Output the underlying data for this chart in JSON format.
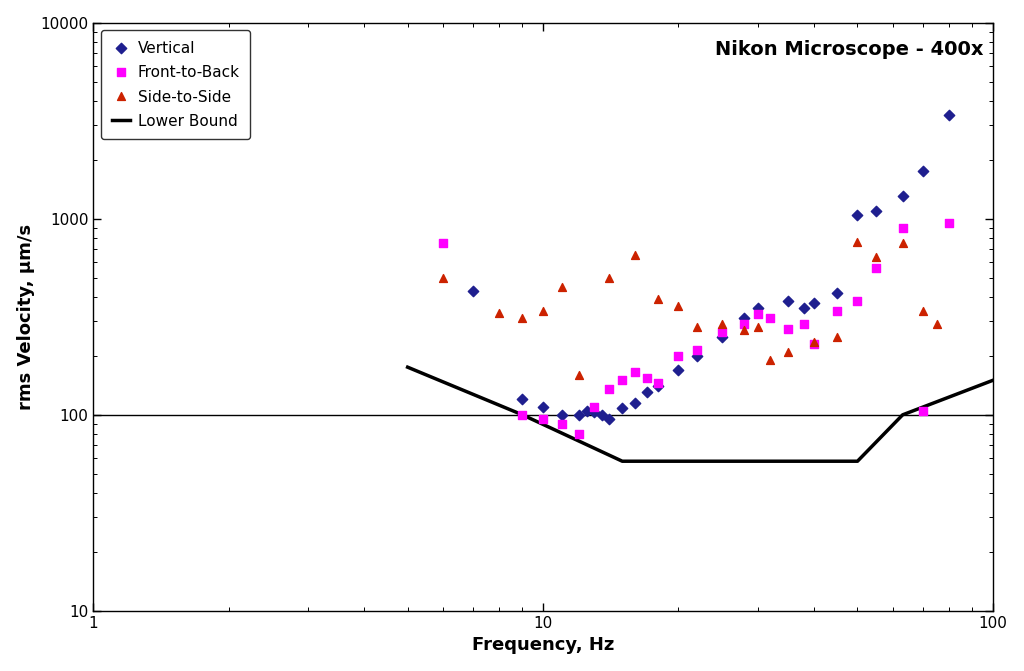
{
  "title": "Nikon Microscope - 400x",
  "xlabel": "Frequency, Hz",
  "ylabel": "rms Velocity, μm/s",
  "xlim": [
    1,
    100
  ],
  "ylim": [
    10,
    10000
  ],
  "background_color": "#ffffff",
  "hline_y": 100,
  "lower_bound_x": [
    5,
    9,
    15,
    50,
    63,
    100
  ],
  "lower_bound_y": [
    175,
    100,
    58,
    58,
    100,
    150
  ],
  "vertical_x": [
    7,
    9,
    10,
    11,
    12,
    12.5,
    13,
    13.5,
    14,
    15,
    16,
    17,
    18,
    20,
    22,
    25,
    28,
    30,
    35,
    38,
    40,
    45,
    50,
    55,
    63,
    70,
    80
  ],
  "vertical_y": [
    430,
    120,
    110,
    100,
    100,
    105,
    103,
    100,
    95,
    108,
    115,
    130,
    140,
    170,
    200,
    250,
    310,
    350,
    380,
    350,
    370,
    420,
    1050,
    1100,
    1300,
    1750,
    3400
  ],
  "front_back_x": [
    6,
    9,
    10,
    11,
    12,
    13,
    14,
    15,
    16,
    17,
    18,
    20,
    22,
    25,
    28,
    30,
    32,
    35,
    38,
    40,
    45,
    50,
    55,
    63,
    70,
    80
  ],
  "front_back_y": [
    750,
    100,
    95,
    90,
    80,
    110,
    135,
    150,
    165,
    155,
    145,
    200,
    215,
    265,
    290,
    325,
    310,
    275,
    290,
    230,
    340,
    380,
    560,
    900,
    105,
    950
  ],
  "side_side_x": [
    6,
    8,
    9,
    10,
    11,
    12,
    14,
    16,
    18,
    20,
    22,
    25,
    28,
    30,
    32,
    35,
    40,
    45,
    50,
    55,
    63,
    70,
    75
  ],
  "side_side_y": [
    500,
    330,
    310,
    340,
    450,
    160,
    500,
    650,
    390,
    360,
    280,
    290,
    270,
    280,
    190,
    210,
    235,
    250,
    760,
    640,
    750,
    340,
    290
  ],
  "legend_labels": [
    "Vertical",
    "Front-to-Back",
    "Side-to-Side",
    "Lower Bound"
  ],
  "vertical_color": "#1f1f8f",
  "front_back_color": "#ff00ff",
  "side_side_color": "#cc2200",
  "lower_bound_color": "#000000"
}
